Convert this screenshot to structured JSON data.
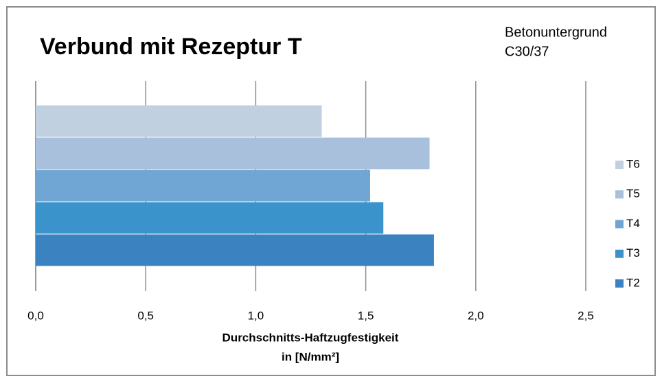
{
  "chart_data": {
    "type": "bar",
    "orientation": "horizontal",
    "title": "Verbund mit Rezeptur T",
    "annotation": [
      "Betonuntergrund",
      "C30/37"
    ],
    "x_label": [
      "Durchschnitts-Haftzugfestigkeit",
      "in [N/mm²]"
    ],
    "categories": [
      null
    ],
    "series": [
      {
        "name": "T2",
        "color": "#3a83c0",
        "values": [
          1.81
        ]
      },
      {
        "name": "T3",
        "color": "#3a93cb",
        "values": [
          1.58
        ]
      },
      {
        "name": "T4",
        "color": "#6fa6d4",
        "values": [
          1.52
        ]
      },
      {
        "name": "T5",
        "color": "#a8c0dc",
        "values": [
          1.79
        ]
      },
      {
        "name": "T6",
        "color": "#c0d0e0",
        "values": [
          1.3
        ]
      }
    ],
    "xlim": [
      0,
      2.5
    ],
    "xticks": [
      {
        "value": 0,
        "label": "0,0"
      },
      {
        "value": 0.5,
        "label": "0,5"
      },
      {
        "value": 1,
        "label": "1,0"
      },
      {
        "value": 1.5,
        "label": "1,5"
      },
      {
        "value": 2,
        "label": "2,0"
      },
      {
        "value": 2.5,
        "label": "2,5"
      }
    ],
    "grid": true,
    "legend": "right"
  }
}
